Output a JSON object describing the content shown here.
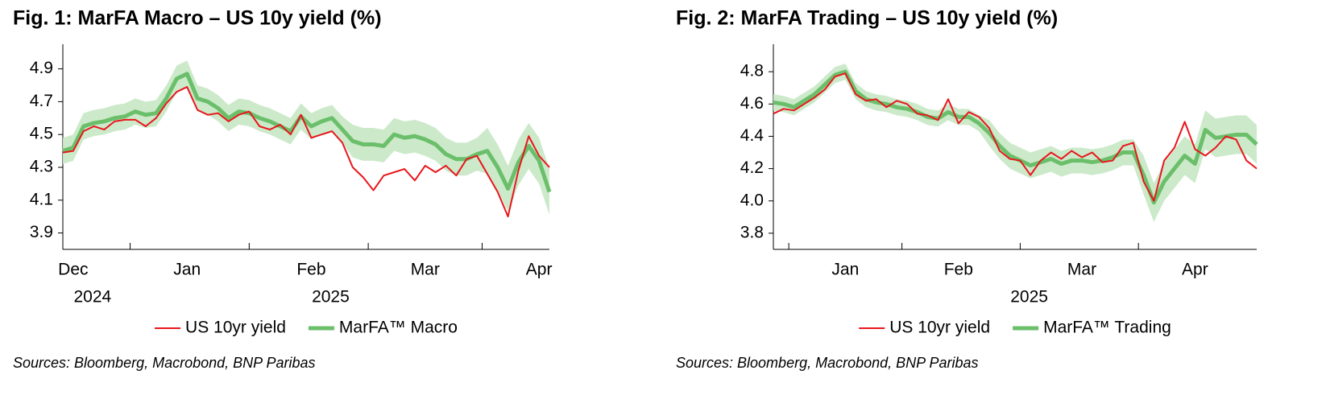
{
  "chart_data": [
    {
      "type": "line",
      "title": "Fig. 1: MarFA Macro – US 10y yield (%)",
      "note": "Sources: Bloomberg,  Macrobond,  BNP Paribas",
      "categories": [
        null,
        "Dec",
        null,
        null,
        null,
        null,
        null,
        null,
        null,
        null,
        null,
        null,
        "Jan",
        null,
        null,
        null,
        null,
        null,
        null,
        null,
        null,
        null,
        null,
        null,
        "Feb",
        null,
        null,
        null,
        null,
        null,
        null,
        null,
        null,
        null,
        null,
        "Mar",
        null,
        null,
        null,
        null,
        null,
        null,
        null,
        null,
        null,
        null,
        "Apr",
        null
      ],
      "category_years": [
        null,
        "2024",
        null,
        null,
        null,
        null,
        null,
        null,
        null,
        null,
        null,
        null,
        null,
        null,
        null,
        null,
        null,
        null,
        null,
        null,
        null,
        null,
        null,
        null,
        "2025",
        null,
        null,
        null,
        null,
        null,
        null,
        null,
        null,
        null,
        null,
        null,
        null,
        null,
        null,
        null,
        null,
        null,
        null,
        null,
        null,
        null,
        null,
        null
      ],
      "ylim": [
        3.8,
        5.05
      ],
      "yticks": [
        3.9,
        4.1,
        4.3,
        4.5,
        4.7,
        4.9
      ],
      "series": [
        {
          "name": "US 10yr yield",
          "color": "#e8161c",
          "line_width": 2,
          "values": [
            4.39,
            4.4,
            4.52,
            4.55,
            4.53,
            4.58,
            4.59,
            4.59,
            4.55,
            4.6,
            4.69,
            4.76,
            4.79,
            4.65,
            4.62,
            4.63,
            4.58,
            4.62,
            4.64,
            4.55,
            4.53,
            4.56,
            4.5,
            4.62,
            4.48,
            4.5,
            4.52,
            4.45,
            4.3,
            4.24,
            4.16,
            4.25,
            4.27,
            4.29,
            4.22,
            4.31,
            4.27,
            4.31,
            4.25,
            4.35,
            4.37,
            4.26,
            4.15,
            4.0,
            4.28,
            4.49,
            4.37,
            4.3
          ]
        },
        {
          "name": "MarFA™ Macro",
          "color": "#6bbf6b",
          "line_width": 5,
          "band_color": "#c6e8c4",
          "values": [
            4.4,
            4.42,
            4.55,
            4.57,
            4.58,
            4.6,
            4.61,
            4.64,
            4.62,
            4.63,
            4.72,
            4.84,
            4.87,
            4.72,
            4.7,
            4.66,
            4.6,
            4.64,
            4.63,
            4.6,
            4.58,
            4.55,
            4.52,
            4.61,
            4.55,
            4.58,
            4.6,
            4.53,
            4.46,
            4.44,
            4.44,
            4.43,
            4.5,
            4.48,
            4.49,
            4.47,
            4.44,
            4.38,
            4.35,
            4.35,
            4.38,
            4.4,
            4.3,
            4.17,
            4.33,
            4.43,
            4.34,
            4.15
          ],
          "band_upper": [
            4.48,
            4.5,
            4.63,
            4.65,
            4.66,
            4.68,
            4.69,
            4.72,
            4.7,
            4.71,
            4.8,
            4.92,
            4.95,
            4.8,
            4.78,
            4.74,
            4.68,
            4.72,
            4.71,
            4.68,
            4.66,
            4.63,
            4.6,
            4.69,
            4.63,
            4.66,
            4.68,
            4.61,
            4.56,
            4.54,
            4.54,
            4.53,
            4.6,
            4.58,
            4.59,
            4.57,
            4.54,
            4.48,
            4.45,
            4.45,
            4.48,
            4.54,
            4.44,
            4.31,
            4.47,
            4.57,
            4.48,
            4.29
          ],
          "band_lower": [
            4.32,
            4.34,
            4.47,
            4.49,
            4.5,
            4.52,
            4.53,
            4.56,
            4.54,
            4.55,
            4.64,
            4.76,
            4.79,
            4.64,
            4.62,
            4.58,
            4.52,
            4.56,
            4.55,
            4.52,
            4.5,
            4.47,
            4.44,
            4.53,
            4.47,
            4.5,
            4.52,
            4.45,
            4.36,
            4.34,
            4.34,
            4.33,
            4.4,
            4.38,
            4.39,
            4.37,
            4.34,
            4.28,
            4.25,
            4.25,
            4.28,
            4.26,
            4.16,
            4.03,
            4.19,
            4.29,
            4.2,
            4.01
          ]
        }
      ]
    },
    {
      "type": "line",
      "title": "Fig. 2: MarFA Trading – US 10y yield (%)",
      "note": "Sources: Bloomberg,  Macrobond,  BNP Paribas",
      "categories": [
        null,
        null,
        null,
        null,
        null,
        null,
        null,
        "Jan",
        null,
        null,
        null,
        null,
        null,
        null,
        null,
        null,
        null,
        null,
        "Feb",
        null,
        null,
        null,
        null,
        null,
        null,
        null,
        null,
        null,
        null,
        null,
        "Mar",
        null,
        null,
        null,
        null,
        null,
        null,
        null,
        null,
        null,
        null,
        "Apr",
        null,
        null,
        null,
        null,
        null,
        null
      ],
      "category_years": [
        null,
        null,
        null,
        null,
        null,
        null,
        null,
        null,
        null,
        null,
        null,
        null,
        null,
        null,
        null,
        null,
        null,
        null,
        null,
        null,
        null,
        null,
        null,
        "2025",
        null,
        null,
        null,
        null,
        null,
        null,
        null,
        null,
        null,
        null,
        null,
        null,
        null,
        null,
        null,
        null,
        null,
        null,
        null,
        null,
        null,
        null,
        null,
        null
      ],
      "ylim": [
        3.7,
        4.97
      ],
      "yticks": [
        3.8,
        {
          "value": 4,
          "label": "4.0"
        },
        4.2,
        4.4,
        4.6,
        4.8
      ],
      "series": [
        {
          "name": "US 10yr yield",
          "color": "#e8161c",
          "line_width": 2,
          "values": [
            4.54,
            4.57,
            4.56,
            4.6,
            4.64,
            4.69,
            4.77,
            4.79,
            4.66,
            4.62,
            4.63,
            4.58,
            4.62,
            4.6,
            4.54,
            4.53,
            4.5,
            4.63,
            4.48,
            4.55,
            4.52,
            4.45,
            4.31,
            4.26,
            4.25,
            4.16,
            4.25,
            4.3,
            4.26,
            4.31,
            4.27,
            4.3,
            4.24,
            4.25,
            4.34,
            4.36,
            4.12,
            4.0,
            4.25,
            4.33,
            4.49,
            4.32,
            4.28,
            4.33,
            4.4,
            4.38,
            4.25,
            4.2
          ]
        },
        {
          "name": "MarFA™ Trading",
          "color": "#6bbf6b",
          "line_width": 5,
          "band_color": "#c6e8c4",
          "values": [
            4.61,
            4.6,
            4.58,
            4.62,
            4.66,
            4.72,
            4.78,
            4.8,
            4.68,
            4.63,
            4.61,
            4.6,
            4.58,
            4.57,
            4.55,
            4.52,
            4.51,
            4.55,
            4.52,
            4.52,
            4.48,
            4.42,
            4.34,
            4.28,
            4.25,
            4.22,
            4.24,
            4.26,
            4.23,
            4.25,
            4.25,
            4.24,
            4.25,
            4.27,
            4.3,
            4.3,
            4.16,
            3.99,
            4.12,
            4.2,
            4.28,
            4.23,
            4.44,
            4.39,
            4.4,
            4.41,
            4.41,
            4.35
          ],
          "band_upper": [
            4.66,
            4.65,
            4.63,
            4.67,
            4.71,
            4.77,
            4.83,
            4.85,
            4.73,
            4.68,
            4.66,
            4.65,
            4.63,
            4.62,
            4.6,
            4.57,
            4.56,
            4.6,
            4.57,
            4.57,
            4.53,
            4.5,
            4.42,
            4.36,
            4.33,
            4.3,
            4.32,
            4.34,
            4.31,
            4.33,
            4.33,
            4.32,
            4.33,
            4.35,
            4.38,
            4.38,
            4.28,
            4.11,
            4.24,
            4.32,
            4.4,
            4.35,
            4.56,
            4.51,
            4.52,
            4.53,
            4.53,
            4.47
          ],
          "band_lower": [
            4.56,
            4.55,
            4.53,
            4.57,
            4.61,
            4.67,
            4.73,
            4.75,
            4.63,
            4.58,
            4.56,
            4.55,
            4.53,
            4.52,
            4.5,
            4.47,
            4.46,
            4.5,
            4.47,
            4.47,
            4.43,
            4.34,
            4.26,
            4.2,
            4.17,
            4.14,
            4.16,
            4.18,
            4.15,
            4.17,
            4.17,
            4.16,
            4.17,
            4.19,
            4.22,
            4.22,
            4.04,
            3.87,
            4.0,
            4.08,
            4.16,
            4.11,
            4.32,
            4.27,
            4.28,
            4.29,
            4.29,
            4.23
          ]
        }
      ]
    }
  ]
}
